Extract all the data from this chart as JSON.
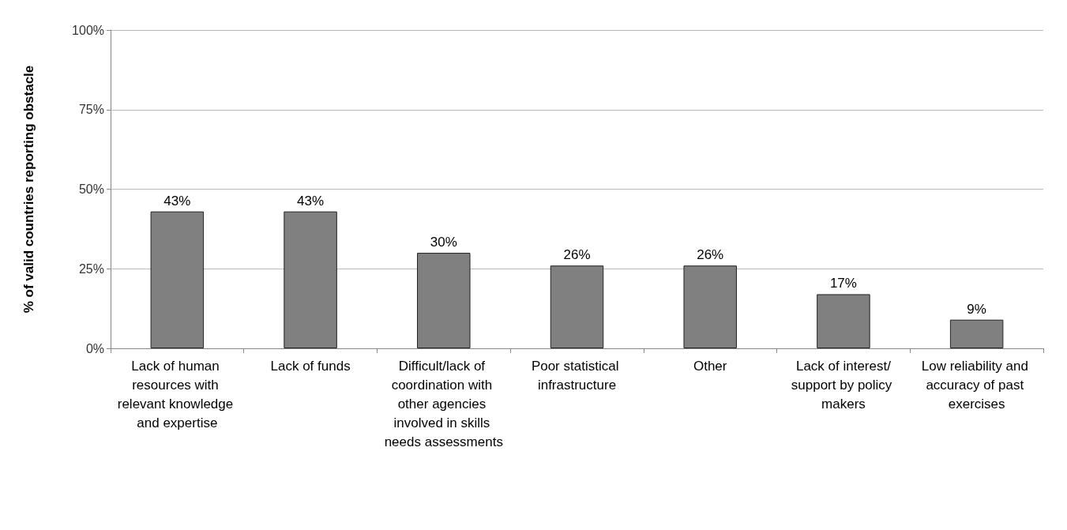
{
  "chart_data": {
    "type": "bar",
    "ylabel": "% of valid countries reporting obstacle",
    "categories": [
      "Lack of human resources with relevant knowledge and expertise",
      "Lack of funds",
      "Difficult/lack of coordination with other agencies involved in skills needs assessments",
      "Poor statistical infrastructure",
      "Other",
      "Lack of interest/support by policy makers",
      "Low reliability and accuracy of past exercises"
    ],
    "values": [
      43,
      43,
      30,
      26,
      26,
      17,
      9
    ],
    "value_labels": [
      "43%",
      "43%",
      "30%",
      "26%",
      "26%",
      "17%",
      "9%"
    ],
    "color": "#808080",
    "ylim": [
      0,
      100
    ],
    "yticks": [
      {
        "value": 0,
        "label": "0%"
      },
      {
        "value": 25,
        "label": "25%"
      },
      {
        "value": 50,
        "label": "50%"
      },
      {
        "value": 75,
        "label": "75%"
      },
      {
        "value": 100,
        "label": "100%"
      }
    ],
    "grid": "y"
  }
}
